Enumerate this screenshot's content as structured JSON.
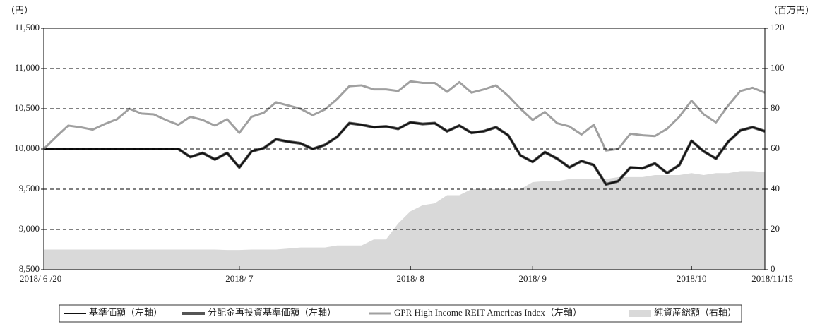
{
  "chart_data": {
    "type": "line",
    "y_unit": "（円）",
    "y2_unit": "（百万円）",
    "categories": [
      "2018/ 6 /20",
      null,
      null,
      null,
      null,
      null,
      null,
      null,
      null,
      null,
      null,
      null,
      null,
      null,
      null,
      null,
      "2018/ 7",
      null,
      null,
      null,
      null,
      null,
      null,
      null,
      null,
      null,
      null,
      null,
      null,
      null,
      "2018/ 8",
      null,
      null,
      null,
      null,
      null,
      null,
      null,
      null,
      null,
      "2018/ 9",
      null,
      null,
      null,
      null,
      null,
      null,
      null,
      null,
      null,
      null,
      null,
      null,
      "2018/10",
      null,
      null,
      null,
      null,
      null,
      "2018/11/15"
    ],
    "series": [
      {
        "name": "純資産総額（右軸）",
        "color": "#d9d9d9",
        "axis": "y2",
        "kind": "area",
        "values": [
          10,
          10,
          10,
          10,
          10,
          10,
          10,
          10,
          10,
          10,
          10,
          10,
          10,
          10,
          10,
          9.8,
          9.8,
          10,
          10,
          10,
          10.5,
          11,
          11,
          11,
          12,
          12,
          12,
          15,
          15,
          23,
          29,
          32,
          33,
          37,
          37,
          40,
          40,
          40,
          40,
          40,
          43.5,
          44,
          44,
          45,
          45,
          45,
          45,
          46,
          46,
          46,
          47,
          47,
          47,
          48,
          47,
          48,
          48,
          49,
          49,
          48.5
        ]
      },
      {
        "name": "分配金再投資基準価額（左軸）",
        "color": "#555555",
        "width": 4,
        "values": [
          10000,
          10000,
          10000,
          10000,
          10000,
          10000,
          10000,
          10000,
          10000,
          10000,
          10000,
          10000,
          9900,
          9950,
          9870,
          9950,
          9770,
          9970,
          10010,
          10120,
          10090,
          10070,
          10000,
          10050,
          10150,
          10320,
          10300,
          10270,
          10280,
          10250,
          10330,
          10310,
          10320,
          10220,
          10290,
          10200,
          10220,
          10270,
          10170,
          9920,
          9840,
          9960,
          9880,
          9770,
          9850,
          9800,
          9560,
          9600,
          9770,
          9760,
          9820,
          9700,
          9800,
          10100,
          9970,
          9880,
          10090,
          10230,
          10270,
          10220
        ]
      },
      {
        "name": "基準価額（左軸）",
        "color": "#111111",
        "width": 2,
        "values": [
          10000,
          10000,
          10000,
          10000,
          10000,
          10000,
          10000,
          10000,
          10000,
          10000,
          10000,
          10000,
          9900,
          9950,
          9870,
          9950,
          9770,
          9970,
          10010,
          10120,
          10090,
          10070,
          10000,
          10050,
          10150,
          10320,
          10300,
          10270,
          10280,
          10250,
          10330,
          10310,
          10320,
          10220,
          10290,
          10200,
          10220,
          10270,
          10170,
          9920,
          9840,
          9960,
          9880,
          9770,
          9850,
          9800,
          9560,
          9600,
          9770,
          9760,
          9820,
          9700,
          9800,
          10100,
          9970,
          9880,
          10090,
          10230,
          10270,
          10220
        ]
      },
      {
        "name": "GPR High Income REIT Americas Index（左軸）",
        "color": "#a0a0a0",
        "width": 3,
        "values": [
          10000,
          10150,
          10290,
          10270,
          10240,
          10310,
          10370,
          10500,
          10440,
          10430,
          10360,
          10300,
          10400,
          10360,
          10290,
          10370,
          10200,
          10400,
          10450,
          10580,
          10540,
          10500,
          10420,
          10490,
          10620,
          10780,
          10790,
          10740,
          10740,
          10720,
          10840,
          10820,
          10820,
          10710,
          10830,
          10700,
          10740,
          10790,
          10660,
          10500,
          10360,
          10460,
          10320,
          10280,
          10180,
          10300,
          9980,
          10000,
          10190,
          10170,
          10160,
          10250,
          10400,
          10600,
          10430,
          10330,
          10540,
          10720,
          10760,
          10700
        ]
      }
    ],
    "legend_order": [
      2,
      1,
      3,
      0
    ],
    "ylim": [
      8500,
      11500
    ],
    "yticks": [
      {
        "value": 8500,
        "label": "8,500"
      },
      {
        "value": 9000,
        "label": "9,000"
      },
      {
        "value": 9500,
        "label": "9,500"
      },
      {
        "value": 10000,
        "label": "10,000"
      },
      {
        "value": 10500,
        "label": "10,500"
      },
      {
        "value": 11000,
        "label": "11,000"
      },
      {
        "value": 11500,
        "label": "11,500"
      }
    ],
    "y2lim": [
      0,
      120
    ],
    "y2ticks": [
      0,
      20,
      40,
      60,
      80,
      100,
      120
    ],
    "grid": true
  }
}
